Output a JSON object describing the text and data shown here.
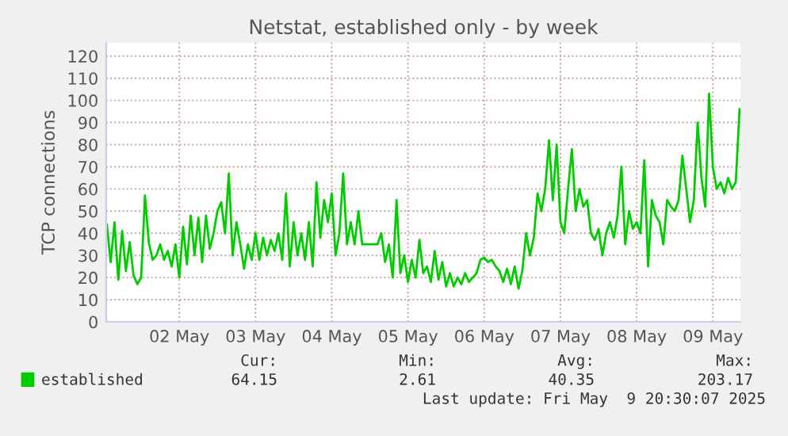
{
  "chart_data": {
    "type": "line",
    "title": "Netstat, established only - by week",
    "ylabel": "TCP connections",
    "x": [
      "2025-05-01T13:12",
      "2025-05-01T14:24",
      "2025-05-01T15:36",
      "2025-05-01T16:48",
      "2025-05-01T18:00",
      "2025-05-01T19:12",
      "2025-05-01T20:24",
      "2025-05-01T21:36",
      "2025-05-01T22:48",
      "2025-05-02T00:00",
      "2025-05-02T01:12",
      "2025-05-02T02:24",
      "2025-05-02T03:36",
      "2025-05-02T04:48",
      "2025-05-02T06:00",
      "2025-05-02T07:12",
      "2025-05-02T08:24",
      "2025-05-02T09:36",
      "2025-05-02T10:48",
      "2025-05-02T12:00",
      "2025-05-02T13:12",
      "2025-05-02T14:24",
      "2025-05-02T15:36",
      "2025-05-02T16:48",
      "2025-05-02T18:00",
      "2025-05-02T19:12",
      "2025-05-02T20:24",
      "2025-05-02T21:36",
      "2025-05-02T22:48",
      "2025-05-03T00:00",
      "2025-05-03T01:12",
      "2025-05-03T02:24",
      "2025-05-03T03:36",
      "2025-05-03T04:48",
      "2025-05-03T06:00",
      "2025-05-03T07:12",
      "2025-05-03T08:24",
      "2025-05-03T09:36",
      "2025-05-03T10:48",
      "2025-05-03T12:00",
      "2025-05-03T13:12",
      "2025-05-03T14:24",
      "2025-05-03T15:36",
      "2025-05-03T16:48",
      "2025-05-03T18:00",
      "2025-05-03T19:12",
      "2025-05-03T20:24",
      "2025-05-03T21:36",
      "2025-05-03T22:48",
      "2025-05-04T00:00",
      "2025-05-04T01:12",
      "2025-05-04T02:24",
      "2025-05-04T03:36",
      "2025-05-04T04:48",
      "2025-05-04T06:00",
      "2025-05-04T07:12",
      "2025-05-04T08:24",
      "2025-05-04T09:36",
      "2025-05-04T10:48",
      "2025-05-04T12:00",
      "2025-05-04T13:12",
      "2025-05-04T14:24",
      "2025-05-04T15:36",
      "2025-05-04T16:48",
      "2025-05-04T18:00",
      "2025-05-04T19:12",
      "2025-05-04T20:24",
      "2025-05-04T21:36",
      "2025-05-04T22:48",
      "2025-05-05T00:00",
      "2025-05-05T01:12",
      "2025-05-05T02:24",
      "2025-05-05T03:36",
      "2025-05-05T04:48",
      "2025-05-05T06:00",
      "2025-05-05T07:12",
      "2025-05-05T08:24",
      "2025-05-05T09:36",
      "2025-05-05T10:48",
      "2025-05-05T12:00",
      "2025-05-05T13:12",
      "2025-05-05T14:24",
      "2025-05-05T15:36",
      "2025-05-05T16:48",
      "2025-05-05T18:00",
      "2025-05-05T19:12",
      "2025-05-05T20:24",
      "2025-05-05T21:36",
      "2025-05-05T22:48",
      "2025-05-06T00:00",
      "2025-05-06T01:12",
      "2025-05-06T02:24",
      "2025-05-06T03:36",
      "2025-05-06T04:48",
      "2025-05-06T06:00",
      "2025-05-06T07:12",
      "2025-05-06T08:24",
      "2025-05-06T09:36",
      "2025-05-06T10:48",
      "2025-05-06T12:00",
      "2025-05-06T13:12",
      "2025-05-06T14:24",
      "2025-05-06T15:36",
      "2025-05-06T16:48",
      "2025-05-06T18:00",
      "2025-05-06T19:12",
      "2025-05-06T20:24",
      "2025-05-06T21:36",
      "2025-05-06T22:48",
      "2025-05-07T00:00",
      "2025-05-07T01:12",
      "2025-05-07T02:24",
      "2025-05-07T03:36",
      "2025-05-07T04:48",
      "2025-05-07T06:00",
      "2025-05-07T07:12",
      "2025-05-07T08:24",
      "2025-05-07T09:36",
      "2025-05-07T10:48",
      "2025-05-07T12:00",
      "2025-05-07T13:12",
      "2025-05-07T14:24",
      "2025-05-07T15:36",
      "2025-05-07T16:48",
      "2025-05-07T18:00",
      "2025-05-07T19:12",
      "2025-05-07T20:24",
      "2025-05-07T21:36",
      "2025-05-07T22:48",
      "2025-05-08T00:00",
      "2025-05-08T01:12",
      "2025-05-08T02:24",
      "2025-05-08T03:36",
      "2025-05-08T04:48",
      "2025-05-08T06:00",
      "2025-05-08T07:12",
      "2025-05-08T08:24",
      "2025-05-08T09:36",
      "2025-05-08T10:48",
      "2025-05-08T12:00",
      "2025-05-08T13:12",
      "2025-05-08T14:24",
      "2025-05-08T15:36",
      "2025-05-08T16:48",
      "2025-05-08T18:00",
      "2025-05-08T19:12",
      "2025-05-08T20:24",
      "2025-05-08T21:36",
      "2025-05-08T22:48",
      "2025-05-09T00:00",
      "2025-05-09T01:12",
      "2025-05-09T02:24",
      "2025-05-09T03:36",
      "2025-05-09T04:48",
      "2025-05-09T06:00",
      "2025-05-09T07:12",
      "2025-05-09T08:24",
      "2025-05-09T09:36",
      "2025-05-09T10:48",
      "2025-05-09T12:00",
      "2025-05-09T13:12",
      "2025-05-09T14:24",
      "2025-05-09T15:36",
      "2025-05-09T16:48",
      "2025-05-09T18:00",
      "2025-05-09T19:12",
      "2025-05-09T20:24"
    ],
    "series": [
      {
        "name": "established",
        "color": "#00cc00",
        "values": [
          44,
          27,
          45,
          19,
          41,
          23,
          36,
          21,
          17,
          20,
          57,
          36,
          28,
          30,
          35,
          28,
          32,
          25,
          35,
          20,
          43,
          26,
          48,
          30,
          47,
          27,
          48,
          33,
          40,
          50,
          54,
          40,
          67,
          30,
          45,
          35,
          24,
          35,
          28,
          40,
          28,
          38,
          30,
          37,
          32,
          40,
          28,
          58,
          25,
          45,
          30,
          40,
          28,
          45,
          25,
          63,
          38,
          55,
          45,
          58,
          30,
          40,
          67,
          35,
          45,
          35,
          50,
          35,
          35,
          35,
          35,
          35,
          40,
          27,
          35,
          20,
          55,
          22,
          30,
          18,
          28,
          20,
          37,
          22,
          25,
          18,
          32,
          19,
          27,
          16,
          22,
          16,
          20,
          17,
          22,
          18,
          20,
          22,
          28,
          29,
          27,
          28,
          25,
          23,
          18,
          24,
          17,
          25,
          15,
          23,
          40,
          30,
          38,
          58,
          50,
          60,
          82,
          55,
          80,
          45,
          40,
          60,
          78,
          50,
          60,
          52,
          55,
          40,
          37,
          42,
          30,
          40,
          45,
          38,
          48,
          70,
          35,
          50,
          42,
          45,
          40,
          73,
          25,
          55,
          48,
          45,
          35,
          55,
          52,
          50,
          55,
          75,
          60,
          45,
          55,
          90,
          65,
          52,
          103,
          70,
          60,
          63,
          58,
          65,
          60,
          63,
          96
        ]
      }
    ],
    "xlim": [
      "2025-05-01T13:00",
      "2025-05-09T20:40"
    ],
    "xticks": [
      {
        "value": "2025-05-02T12:00",
        "label": "02 May"
      },
      {
        "value": "2025-05-03T12:00",
        "label": "03 May"
      },
      {
        "value": "2025-05-04T12:00",
        "label": "04 May"
      },
      {
        "value": "2025-05-05T12:00",
        "label": "05 May"
      },
      {
        "value": "2025-05-06T12:00",
        "label": "06 May"
      },
      {
        "value": "2025-05-07T12:00",
        "label": "07 May"
      },
      {
        "value": "2025-05-08T12:00",
        "label": "08 May"
      },
      {
        "value": "2025-05-09T12:00",
        "label": "09 May"
      }
    ],
    "ylim": [
      0,
      126
    ],
    "yticks": [
      0,
      10,
      20,
      30,
      40,
      50,
      60,
      70,
      80,
      90,
      100,
      110,
      120
    ],
    "grid": true,
    "legend": "bottom left",
    "annotations": [
      "Cur:",
      "Min:",
      "Avg:",
      "Max:",
      "64.15",
      "2.61",
      "40.35",
      "203.17",
      "Last update: Fri May  9 20:30:07 2025"
    ]
  }
}
